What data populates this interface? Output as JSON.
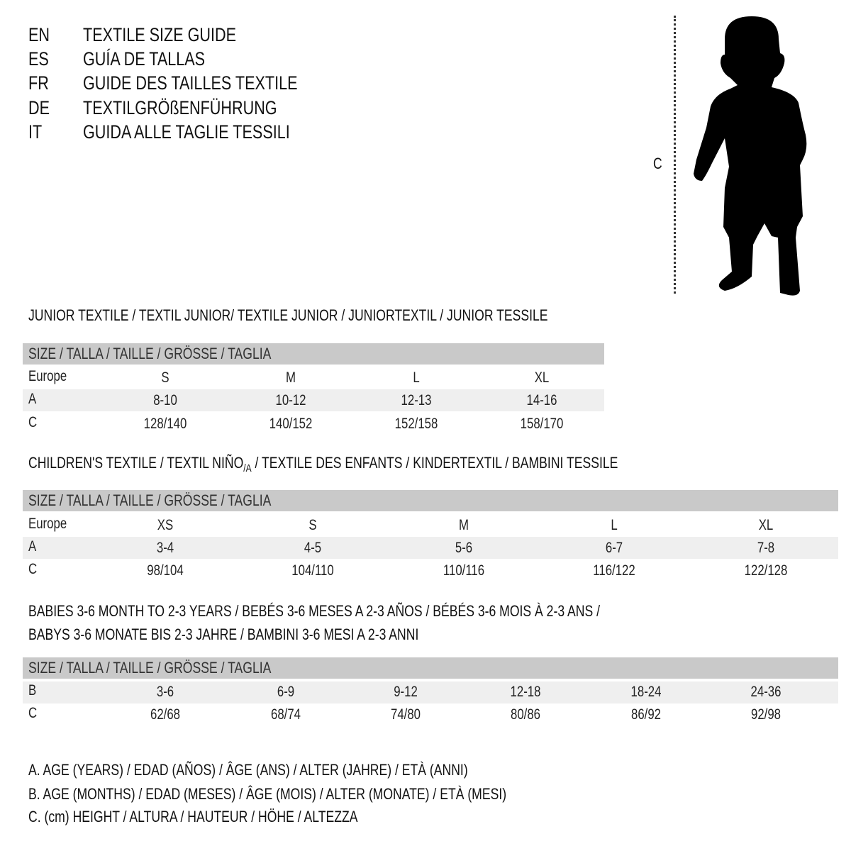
{
  "languages": [
    {
      "code": "EN",
      "title": "TEXTILE SIZE GUIDE"
    },
    {
      "code": "ES",
      "title": "GUÍA DE TALLAS"
    },
    {
      "code": "FR",
      "title": "GUIDE DES TAILLES TEXTILE"
    },
    {
      "code": "DE",
      "title": "TEXTILGRÖßENFÜHRUNG"
    },
    {
      "code": "IT",
      "title": "GUIDA ALLE TAGLIE TESSILI"
    }
  ],
  "figure": {
    "label": "C",
    "icon": "child-silhouette"
  },
  "junior": {
    "title": "JUNIOR TEXTILE / TEXTIL JUNIOR/ TEXTILE JUNIOR / JUNIORTEXTIL / JUNIOR TESSILE",
    "header": "SIZE / TALLA / TAILLE / GRÖSSE / TAGLIA",
    "rows": [
      {
        "label": "Europe",
        "values": [
          "S",
          "M",
          "L",
          "XL"
        ]
      },
      {
        "label": "A",
        "values": [
          "8-10",
          "10-12",
          "12-13",
          "14-16"
        ]
      },
      {
        "label": "C",
        "values": [
          "128/140",
          "140/152",
          "152/158",
          "158/170"
        ]
      }
    ]
  },
  "children": {
    "title_pre": "CHILDREN'S TEXTILE / TEXTIL NIÑO",
    "title_sub": "/A",
    "title_post": " / TEXTILE DES ENFANTS / KINDERTEXTIL / BAMBINI TESSILE",
    "header": "SIZE / TALLA / TAILLE / GRÖSSE / TAGLIA",
    "rows": [
      {
        "label": "Europe",
        "values": [
          "XS",
          "S",
          "M",
          "L",
          "XL"
        ]
      },
      {
        "label": "A",
        "values": [
          "3-4",
          "4-5",
          "5-6",
          "6-7",
          "7-8"
        ]
      },
      {
        "label": "C",
        "values": [
          "98/104",
          "104/110",
          "110/116",
          "116/122",
          "122/128"
        ]
      }
    ]
  },
  "babies": {
    "title_line1": "BABIES 3-6 MONTH TO 2-3 YEARS / BEBÉS 3-6 MESES A 2-3 AÑOS / BÉBÉS 3-6 MOIS À 2-3 ANS /",
    "title_line2": "BABYS 3-6 MONATE BIS 2-3 JAHRE / BAMBINI 3-6 MESI A 2-3 ANNI",
    "header": "SIZE / TALLA / TAILLE / GRÖSSE / TAGLIA",
    "rows": [
      {
        "label": "B",
        "values": [
          "3-6",
          "6-9",
          "9-12",
          "12-18",
          "18-24",
          "24-36"
        ]
      },
      {
        "label": "C",
        "values": [
          "62/68",
          "68/74",
          "74/80",
          "80/86",
          "86/92",
          "92/98"
        ]
      }
    ]
  },
  "legend": [
    "A. AGE (YEARS) / EDAD (AÑOS) / ÂGE (ANS) / ALTER (JAHRE) / ETÀ (ANNI)",
    "B. AGE (MONTHS) / EDAD (MESES) / ÂGE (MOIS) / ALTER (MONATE) / ETÀ (MESI)",
    "C. (cm) HEIGHT / ALTURA / HAUTEUR / HÖHE / ALTEZZA"
  ],
  "colors": {
    "header_bar": "#c9c9c9",
    "row_band": "#efefef",
    "text": "#111111"
  }
}
